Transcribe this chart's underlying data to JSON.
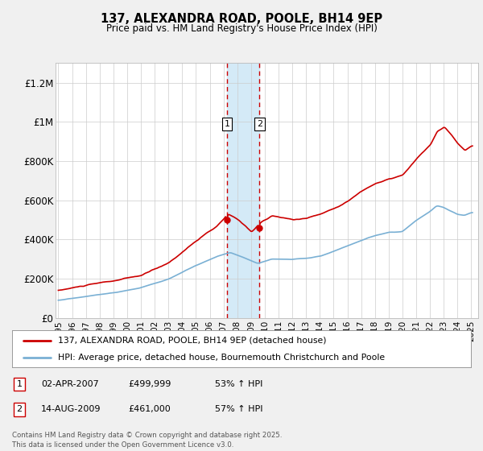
{
  "title": "137, ALEXANDRA ROAD, POOLE, BH14 9EP",
  "subtitle": "Price paid vs. HM Land Registry's House Price Index (HPI)",
  "ylabel_ticks": [
    "£0",
    "£200K",
    "£400K",
    "£600K",
    "£800K",
    "£1M",
    "£1.2M"
  ],
  "ytick_values": [
    0,
    200000,
    400000,
    600000,
    800000,
    1000000,
    1200000
  ],
  "ylim": [
    0,
    1300000
  ],
  "xlim_start": 1994.8,
  "xlim_end": 2025.5,
  "sale1_year": 2007.25,
  "sale1_price": 499999,
  "sale2_year": 2009.62,
  "sale2_price": 461000,
  "highlight_color": "#d4eaf7",
  "dashed_color": "#cc0000",
  "red_color": "#cc0000",
  "blue_color": "#7ab0d4",
  "background_color": "#f0f0f0",
  "plot_bg_color": "#ffffff",
  "legend_line1": "137, ALEXANDRA ROAD, POOLE, BH14 9EP (detached house)",
  "legend_line2": "HPI: Average price, detached house, Bournemouth Christchurch and Poole",
  "footer": "Contains HM Land Registry data © Crown copyright and database right 2025.\nThis data is licensed under the Open Government Licence v3.0."
}
